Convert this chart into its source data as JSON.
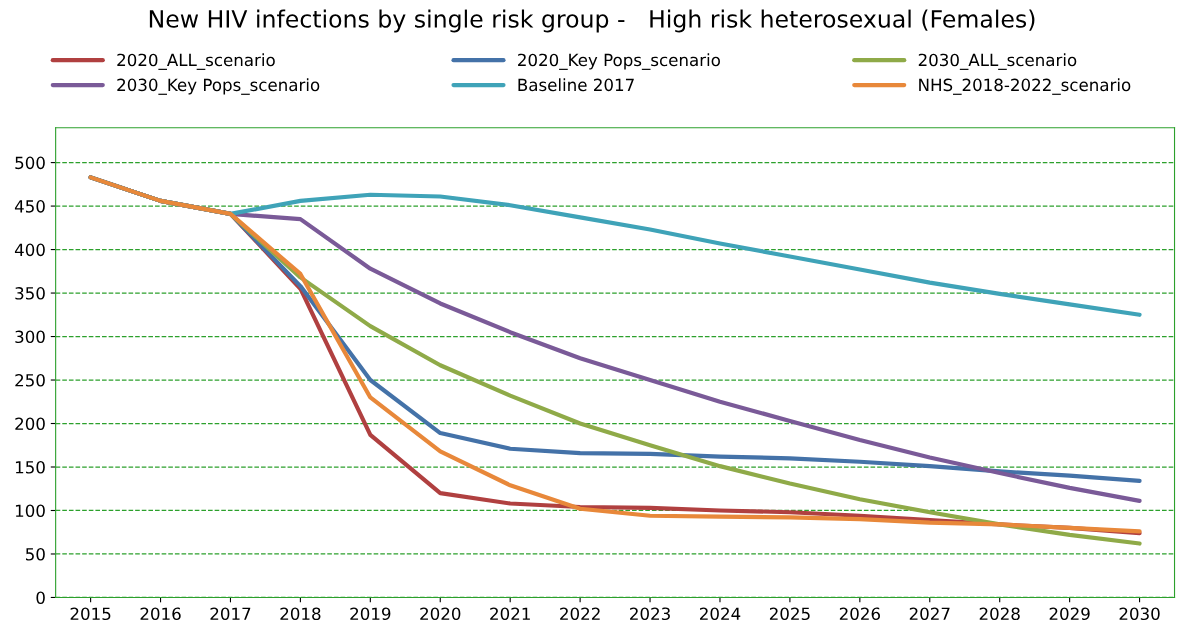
{
  "chart_data": {
    "type": "line",
    "title": "New HIV infections by single risk group -   High risk heterosexual (Females)",
    "x": [
      2015,
      2016,
      2017,
      2018,
      2019,
      2020,
      2021,
      2022,
      2023,
      2024,
      2025,
      2026,
      2027,
      2028,
      2029,
      2030
    ],
    "series": [
      {
        "name": "2020_ALL_scenario",
        "color": "#b04040",
        "values": [
          483,
          456,
          441,
          355,
          187,
          120,
          108,
          104,
          103,
          100,
          98,
          94,
          89,
          84,
          80,
          74
        ]
      },
      {
        "name": "2020_Key Pops_scenario",
        "color": "#4472a8",
        "values": [
          483,
          456,
          441,
          358,
          250,
          189,
          171,
          166,
          165,
          162,
          160,
          156,
          151,
          145,
          140,
          134
        ]
      },
      {
        "name": "2030_ALL_scenario",
        "color": "#8faa48",
        "values": [
          483,
          456,
          441,
          368,
          312,
          267,
          232,
          200,
          175,
          151,
          131,
          113,
          98,
          84,
          72,
          62
        ]
      },
      {
        "name": "2030_Key Pops_scenario",
        "color": "#7a5a98",
        "values": [
          483,
          456,
          441,
          435,
          378,
          338,
          305,
          275,
          250,
          225,
          203,
          181,
          161,
          143,
          126,
          111
        ]
      },
      {
        "name": "Baseline 2017",
        "color": "#3fa3b8",
        "values": [
          483,
          456,
          441,
          456,
          463,
          461,
          451,
          437,
          423,
          407,
          392,
          377,
          362,
          349,
          337,
          325
        ]
      },
      {
        "name": "NHS_2018-2022_scenario",
        "color": "#e8883a",
        "values": [
          483,
          456,
          441,
          372,
          230,
          168,
          129,
          102,
          94,
          93,
          92,
          90,
          86,
          84,
          80,
          76
        ]
      }
    ],
    "xlim": [
      2014.5,
      2030.5
    ],
    "ylim": [
      0,
      540
    ],
    "xticks": [
      2015,
      2016,
      2017,
      2018,
      2019,
      2020,
      2021,
      2022,
      2023,
      2024,
      2025,
      2026,
      2027,
      2028,
      2029,
      2030
    ],
    "yticks": [
      0,
      50,
      100,
      150,
      200,
      250,
      300,
      350,
      400,
      450,
      500
    ],
    "grid": "y",
    "legend": "top",
    "marker": "none",
    "line_style": "solid"
  }
}
